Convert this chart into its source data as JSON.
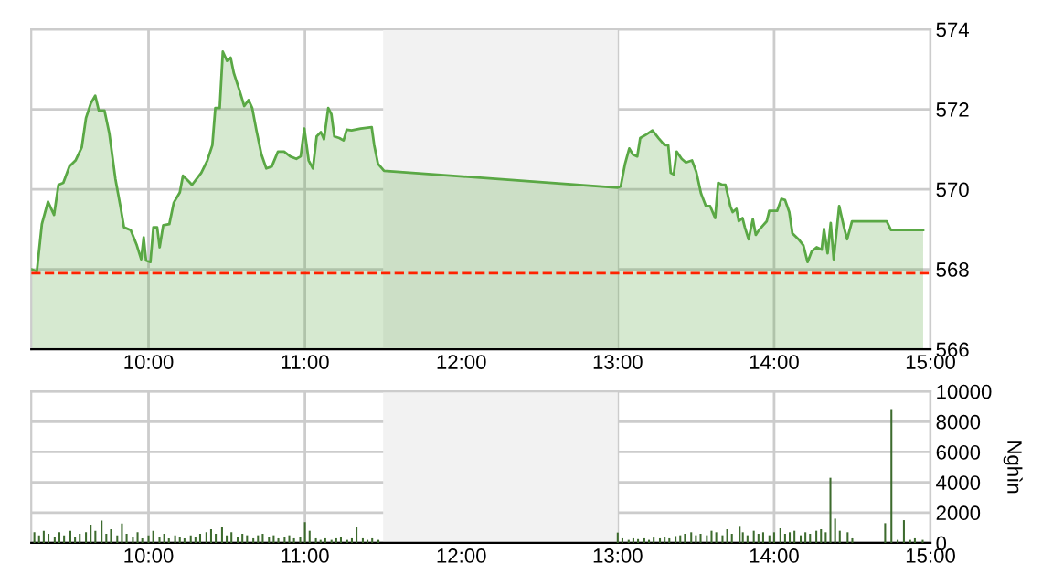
{
  "chart_data": [
    {
      "type": "area",
      "color": "#5aa845",
      "xlim": [
        9.25,
        15
      ],
      "ylim": [
        566,
        574
      ],
      "yticks": [
        566,
        568,
        570,
        572,
        574
      ],
      "xticks": [
        {
          "value": 10,
          "label": "10:00"
        },
        {
          "value": 11,
          "label": "11:00"
        },
        {
          "value": 12,
          "label": "12:00"
        },
        {
          "value": 13,
          "label": "13:00"
        },
        {
          "value": 14,
          "label": "14:00"
        },
        {
          "value": 15,
          "label": "15:00"
        }
      ],
      "grid": true,
      "legend": false,
      "bands": [
        {
          "axis": "x",
          "from": 11.5,
          "to": 13,
          "color": "#f2f2f2"
        }
      ],
      "ref_lines": [
        {
          "axis": "y",
          "value": 567.9,
          "color": "#ff2200",
          "line_style": "dashed"
        }
      ],
      "x": [
        9.25,
        9.286,
        9.318,
        9.357,
        9.396,
        9.424,
        9.455,
        9.494,
        9.533,
        9.573,
        9.6,
        9.631,
        9.659,
        9.682,
        9.718,
        9.749,
        9.788,
        9.82,
        9.843,
        9.886,
        9.925,
        9.953,
        9.969,
        9.984,
        10.012,
        10.031,
        10.055,
        10.071,
        10.094,
        10.133,
        10.161,
        10.2,
        10.22,
        10.259,
        10.278,
        10.337,
        10.376,
        10.408,
        10.427,
        10.455,
        10.475,
        10.502,
        10.525,
        10.545,
        10.58,
        10.612,
        10.639,
        10.663,
        10.69,
        10.722,
        10.753,
        10.788,
        10.827,
        10.867,
        10.906,
        10.945,
        10.973,
        10.996,
        11.024,
        11.051,
        11.075,
        11.102,
        11.122,
        11.149,
        11.169,
        11.188,
        11.22,
        11.247,
        11.267,
        11.298,
        11.357,
        11.427,
        11.443,
        11.467,
        11.506,
        13.0,
        13.019,
        13.047,
        13.074,
        13.097,
        13.125,
        13.144,
        13.183,
        13.222,
        13.261,
        13.3,
        13.323,
        13.339,
        13.358,
        13.377,
        13.409,
        13.436,
        13.475,
        13.502,
        13.533,
        13.564,
        13.591,
        13.623,
        13.642,
        13.669,
        13.689,
        13.72,
        13.735,
        13.759,
        13.774,
        13.798,
        13.813,
        13.837,
        13.864,
        13.883,
        13.903,
        13.93,
        13.953,
        13.969,
        13.992,
        14.019,
        14.047,
        14.07,
        14.097,
        14.117,
        14.156,
        14.187,
        14.214,
        14.241,
        14.272,
        14.304,
        14.319,
        14.342,
        14.362,
        14.381,
        14.416,
        14.447,
        14.467,
        14.498,
        14.564,
        14.72,
        14.747,
        14.953
      ],
      "values": [
        568.0,
        567.95,
        569.13,
        569.69,
        569.36,
        570.11,
        570.16,
        570.57,
        570.72,
        571.05,
        571.78,
        572.15,
        572.34,
        571.97,
        571.97,
        571.4,
        570.26,
        569.58,
        569.05,
        568.98,
        568.6,
        568.25,
        568.8,
        568.22,
        568.18,
        569.05,
        569.05,
        568.55,
        569.1,
        569.13,
        569.66,
        569.92,
        570.34,
        570.19,
        570.11,
        570.41,
        570.72,
        571.1,
        572.03,
        572.03,
        573.44,
        573.21,
        573.29,
        572.91,
        572.49,
        572.08,
        572.23,
        572.03,
        571.47,
        570.87,
        570.52,
        570.57,
        570.94,
        570.94,
        570.82,
        570.76,
        570.82,
        571.52,
        570.72,
        570.52,
        571.32,
        571.43,
        571.25,
        572.03,
        571.88,
        571.32,
        571.28,
        571.22,
        571.49,
        571.47,
        571.52,
        571.55,
        571.1,
        570.64,
        570.46,
        570.04,
        570.07,
        570.64,
        571.02,
        570.87,
        570.82,
        571.28,
        571.37,
        571.47,
        571.28,
        571.1,
        571.1,
        570.41,
        570.37,
        570.94,
        570.76,
        570.67,
        570.72,
        570.44,
        569.89,
        569.58,
        569.58,
        569.28,
        570.16,
        570.11,
        570.11,
        569.58,
        569.43,
        569.51,
        569.2,
        569.28,
        569.05,
        568.75,
        569.25,
        568.86,
        568.98,
        569.1,
        569.2,
        569.46,
        569.46,
        569.46,
        569.76,
        569.73,
        569.43,
        568.9,
        568.75,
        568.6,
        568.18,
        568.45,
        568.55,
        568.49,
        569.01,
        568.4,
        569.16,
        568.25,
        569.58,
        569.05,
        568.75,
        569.2,
        569.2,
        569.2,
        568.98,
        568.98
      ]
    },
    {
      "type": "bar",
      "color": "#3d6b2e",
      "xlim": [
        9.25,
        15
      ],
      "ylim": [
        0,
        10000
      ],
      "yticks": [
        0,
        2000,
        4000,
        6000,
        8000,
        10000
      ],
      "ylabel": "Nghìn",
      "xticks": [
        {
          "value": 10,
          "label": "10:00"
        },
        {
          "value": 11,
          "label": "11:00"
        },
        {
          "value": 12,
          "label": "12:00"
        },
        {
          "value": 13,
          "label": "13:00"
        },
        {
          "value": 14,
          "label": "14:00"
        },
        {
          "value": 15,
          "label": "15:00"
        }
      ],
      "grid": true,
      "legend": false,
      "bands": [
        {
          "axis": "x",
          "from": 11.5,
          "to": 13,
          "color": "#f2f2f2"
        }
      ],
      "x": [
        9.27,
        9.3,
        9.33,
        9.36,
        9.4,
        9.43,
        9.46,
        9.5,
        9.53,
        9.56,
        9.6,
        9.63,
        9.66,
        9.7,
        9.73,
        9.76,
        9.8,
        9.83,
        9.86,
        9.9,
        9.93,
        9.96,
        10.0,
        10.03,
        10.07,
        10.1,
        10.13,
        10.17,
        10.2,
        10.23,
        10.27,
        10.3,
        10.33,
        10.37,
        10.4,
        10.43,
        10.47,
        10.5,
        10.53,
        10.57,
        10.6,
        10.63,
        10.67,
        10.7,
        10.73,
        10.77,
        10.8,
        10.83,
        10.87,
        10.9,
        10.93,
        10.97,
        11.0,
        11.03,
        11.07,
        11.1,
        11.13,
        11.17,
        11.2,
        11.23,
        11.27,
        11.3,
        11.33,
        11.37,
        11.4,
        11.43,
        11.47,
        13.0,
        13.03,
        13.07,
        13.1,
        13.13,
        13.17,
        13.2,
        13.23,
        13.27,
        13.3,
        13.33,
        13.37,
        13.4,
        13.43,
        13.47,
        13.5,
        13.53,
        13.57,
        13.6,
        13.63,
        13.67,
        13.7,
        13.73,
        13.78,
        13.8,
        13.83,
        13.87,
        13.9,
        13.93,
        13.97,
        14.0,
        14.04,
        14.07,
        14.1,
        14.13,
        14.17,
        14.2,
        14.23,
        14.27,
        14.3,
        14.33,
        14.36,
        14.39,
        14.42,
        14.47,
        14.5,
        14.71,
        14.75,
        14.79,
        14.83,
        14.87,
        14.9,
        14.95
      ],
      "values": [
        700,
        500,
        800,
        600,
        400,
        700,
        500,
        800,
        400,
        600,
        700,
        1200,
        800,
        1480,
        600,
        900,
        500,
        1280,
        600,
        400,
        700,
        300,
        500,
        800,
        400,
        600,
        300,
        500,
        400,
        300,
        500,
        400,
        600,
        700,
        900,
        600,
        1080,
        500,
        700,
        400,
        600,
        500,
        300,
        500,
        600,
        400,
        500,
        300,
        400,
        500,
        300,
        400,
        1370,
        800,
        300,
        200,
        300,
        200,
        300,
        400,
        200,
        300,
        1040,
        300,
        200,
        300,
        200,
        680,
        300,
        200,
        300,
        250,
        300,
        200,
        350,
        300,
        400,
        300,
        450,
        500,
        600,
        700,
        500,
        600,
        500,
        800,
        700,
        500,
        900,
        600,
        1120,
        700,
        500,
        800,
        600,
        700,
        500,
        700,
        960,
        600,
        700,
        800,
        500,
        700,
        600,
        800,
        900,
        700,
        4300,
        1600,
        800,
        700,
        300,
        1300,
        8840,
        200,
        1500,
        200,
        300,
        200
      ]
    }
  ]
}
